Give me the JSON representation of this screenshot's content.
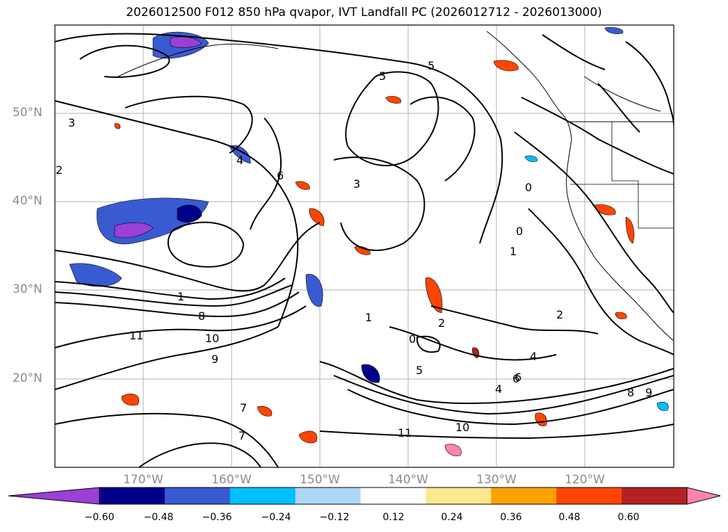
{
  "title": "2026012500 F012 850 hPa qvapor, IVT Landfall PC (2026012712 - 2026013000)",
  "lat_labels": [
    "50°N",
    "40°N",
    "30°N",
    "20°N"
  ],
  "lon_labels": [
    "170°W",
    "160°W",
    "150°W",
    "140°W",
    "130°W",
    "120°W"
  ],
  "map_extent": {
    "lon": [
      -180,
      -110
    ],
    "lat": [
      10,
      60
    ]
  },
  "colorbar": {
    "tick_labels": [
      "−0.60",
      "−0.48",
      "−0.36",
      "−0.24",
      "−0.12",
      "0.12",
      "0.24",
      "0.36",
      "0.48",
      "0.60"
    ],
    "bins": [
      {
        "range": "< -0.60",
        "color": "#9b3fd6"
      },
      {
        "range": "-0.60 to -0.48",
        "color": "#00008b"
      },
      {
        "range": "-0.48 to -0.36",
        "color": "#3a5ad2"
      },
      {
        "range": "-0.36 to -0.24",
        "color": "#00bfff"
      },
      {
        "range": "-0.24 to -0.12",
        "color": "#add8f5"
      },
      {
        "range": "-0.12 to 0.12",
        "color": "#ffffff"
      },
      {
        "range": "0.12 to 0.24",
        "color": "#fde98c"
      },
      {
        "range": "0.24 to 0.36",
        "color": "#ffa200"
      },
      {
        "range": "0.36 to 0.48",
        "color": "#ff4500"
      },
      {
        "range": "0.48 to 0.60",
        "color": "#b22222"
      },
      {
        "range": "> 0.60",
        "color": "#ff85a8"
      }
    ]
  },
  "contour_labels": [
    "3",
    "2",
    "1",
    "0",
    "5",
    "4",
    "6",
    "10",
    "11",
    "9",
    "8",
    "7",
    "3",
    "2",
    "1",
    "0",
    "5",
    "4",
    "6",
    "10",
    "11",
    "9",
    "8",
    "7",
    "2",
    "1",
    "0",
    "5",
    "4",
    "6"
  ]
}
